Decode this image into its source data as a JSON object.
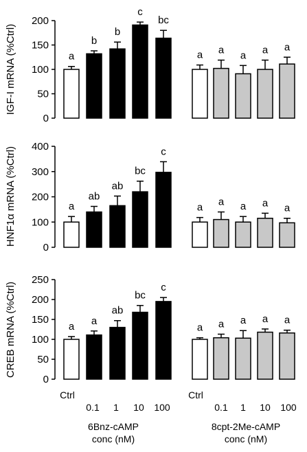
{
  "chart_data": [
    {
      "type": "bar",
      "ylabel": "IGF-I mRNA (%Ctrl)",
      "ylim": [
        0,
        200
      ],
      "yticks": [
        0,
        50,
        100,
        150,
        200
      ],
      "groups": [
        {
          "categories": [
            "Ctrl",
            "0.1",
            "1",
            "10",
            "100"
          ],
          "values": [
            100,
            132,
            142,
            191,
            164
          ],
          "errors": [
            6,
            6,
            14,
            6,
            16
          ],
          "letters": [
            "a",
            "b",
            "b",
            "c",
            "bc"
          ],
          "fills": [
            "#ffffff",
            "#000000",
            "#000000",
            "#000000",
            "#000000"
          ]
        },
        {
          "categories": [
            "Ctrl",
            "0.1",
            "1",
            "10",
            "100"
          ],
          "values": [
            100,
            102,
            91,
            100,
            111
          ],
          "errors": [
            9,
            17,
            17,
            19,
            14
          ],
          "letters": [
            "a",
            "a",
            "a",
            "a",
            "a"
          ],
          "fills": [
            "#ffffff",
            "#c8c8c8",
            "#c8c8c8",
            "#c8c8c8",
            "#c8c8c8"
          ]
        }
      ]
    },
    {
      "type": "bar",
      "ylabel": "HNF1α mRNA (%Ctrl)",
      "ylim": [
        0,
        400
      ],
      "yticks": [
        0,
        100,
        200,
        300,
        400
      ],
      "groups": [
        {
          "categories": [
            "Ctrl",
            "0.1",
            "1",
            "10",
            "100"
          ],
          "values": [
            100,
            140,
            165,
            220,
            297
          ],
          "errors": [
            22,
            22,
            38,
            42,
            42
          ],
          "letters": [
            "a",
            "ab",
            "ab",
            "bc",
            "c"
          ],
          "fills": [
            "#ffffff",
            "#000000",
            "#000000",
            "#000000",
            "#000000"
          ]
        },
        {
          "categories": [
            "Ctrl",
            "0.1",
            "1",
            "10",
            "100"
          ],
          "values": [
            100,
            110,
            100,
            115,
            97
          ],
          "errors": [
            18,
            30,
            22,
            20,
            18
          ],
          "letters": [
            "a",
            "a",
            "a",
            "a",
            "a"
          ],
          "fills": [
            "#ffffff",
            "#c8c8c8",
            "#c8c8c8",
            "#c8c8c8",
            "#c8c8c8"
          ]
        }
      ]
    },
    {
      "type": "bar",
      "ylabel": "CREB mRNA (%Ctrl)",
      "ylim": [
        0,
        250
      ],
      "yticks": [
        0,
        50,
        100,
        150,
        200,
        250
      ],
      "groups": [
        {
          "categories": [
            "Ctrl",
            "0.1",
            "1",
            "10",
            "100"
          ],
          "values": [
            100,
            111,
            130,
            168,
            195
          ],
          "errors": [
            7,
            10,
            17,
            17,
            10
          ],
          "letters": [
            "a",
            "a",
            "ab",
            "bc",
            "c"
          ],
          "fills": [
            "#ffffff",
            "#000000",
            "#000000",
            "#000000",
            "#000000"
          ]
        },
        {
          "categories": [
            "Ctrl",
            "0.1",
            "1",
            "10",
            "100"
          ],
          "values": [
            100,
            104,
            103,
            118,
            116
          ],
          "errors": [
            4,
            9,
            19,
            8,
            7
          ],
          "letters": [
            "a",
            "a",
            "a",
            "a",
            "a"
          ],
          "fills": [
            "#ffffff",
            "#c8c8c8",
            "#c8c8c8",
            "#c8c8c8",
            "#c8c8c8"
          ]
        }
      ]
    }
  ],
  "x_axis": {
    "left_tick_labels": [
      "Ctrl",
      "0.1",
      "1",
      "10",
      "100"
    ],
    "right_tick_labels": [
      "Ctrl",
      "0.1",
      "1",
      "10",
      "100"
    ],
    "left_title_line1": "6Bnz-cAMP",
    "left_title_line2": "conc (nM)",
    "right_title_line1": "8cpt-2Me-cAMP",
    "right_title_line2": "conc (nM)"
  }
}
